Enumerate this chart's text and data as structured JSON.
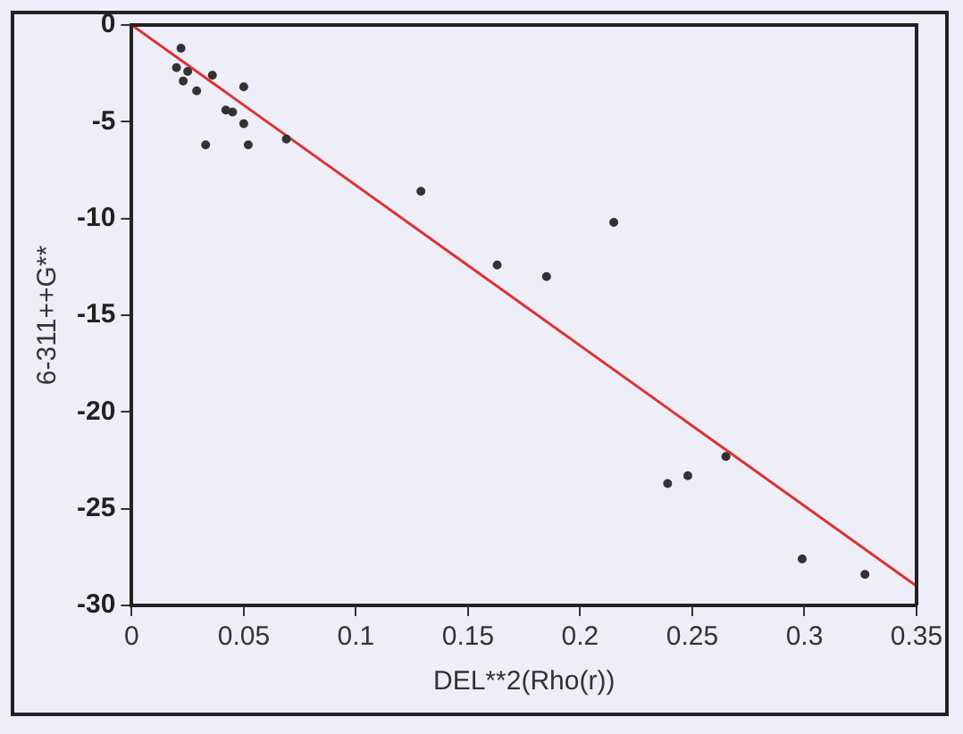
{
  "chart_data": {
    "type": "scatter",
    "xlabel": "DEL**2(Rho(r))",
    "ylabel": "6-311++G**",
    "xlim": [
      0,
      0.35
    ],
    "ylim": [
      -30,
      0
    ],
    "xticks": [
      0,
      0.05,
      0.1,
      0.15,
      0.2,
      0.25,
      0.3,
      0.35
    ],
    "yticks": [
      0,
      -5,
      -10,
      -15,
      -20,
      -25,
      -30
    ],
    "grid": false,
    "legend": false,
    "series": [
      {
        "marker": "circle",
        "color": "#333333",
        "x": [
          0.022,
          0.02,
          0.025,
          0.023,
          0.029,
          0.036,
          0.05,
          0.042,
          0.045,
          0.05,
          0.033,
          0.052,
          0.069,
          0.129,
          0.163,
          0.185,
          0.215,
          0.239,
          0.248,
          0.265,
          0.299,
          0.327
        ],
        "values": [
          -1.2,
          -2.2,
          -2.4,
          -2.9,
          -3.4,
          -2.6,
          -3.2,
          -4.4,
          -4.5,
          -5.1,
          -6.2,
          -6.2,
          -5.9,
          -8.6,
          -12.4,
          -13.0,
          -10.2,
          -23.7,
          -23.3,
          -22.3,
          -27.6,
          -28.4
        ]
      },
      {
        "type": "line",
        "marker": "none",
        "color": "#e03030",
        "x": [
          0,
          0.35
        ],
        "values": [
          0,
          -29
        ]
      }
    ]
  }
}
